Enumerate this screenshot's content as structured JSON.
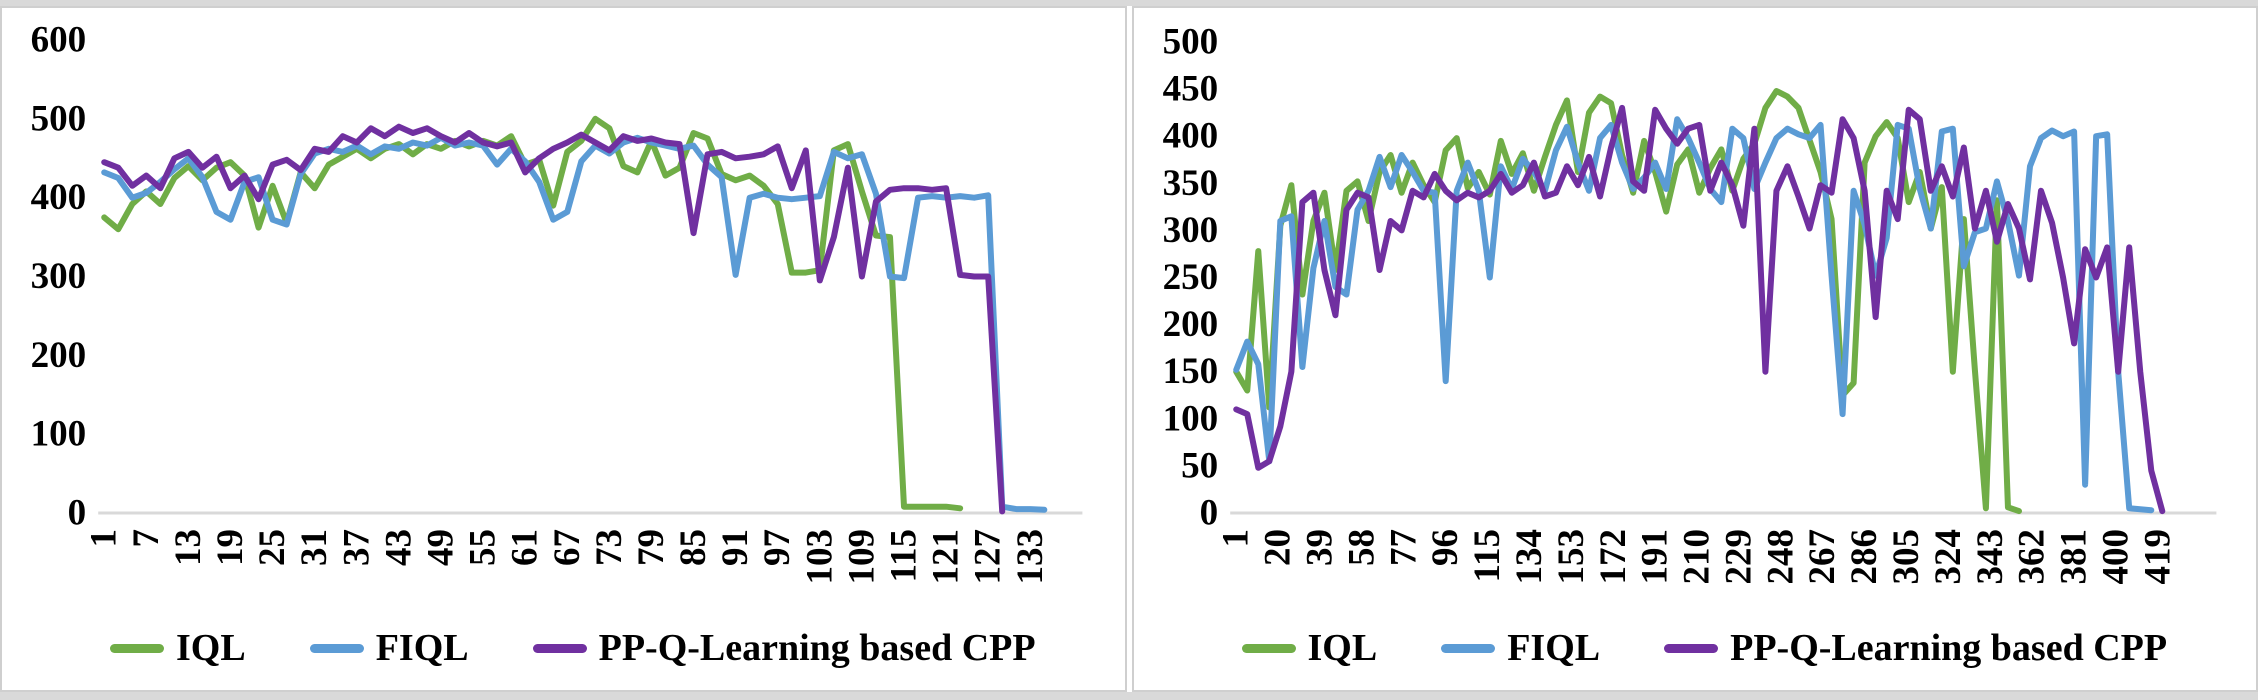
{
  "figure": {
    "background": "#ffffff",
    "frame_color": "#d9d9d9",
    "panel_border_color": "#cfcfcf",
    "axis_line_color": "#d9d9d9",
    "tick_color": "#000000"
  },
  "legend": {
    "items": [
      {
        "label": "IQL",
        "color": "#70AD47"
      },
      {
        "label": "FIQL",
        "color": "#5B9BD5"
      },
      {
        "label": "PP-Q-Learning based CPP",
        "color": "#7030A0"
      }
    ]
  },
  "chart_data": [
    {
      "type": "line",
      "title": "",
      "xlabel": "",
      "ylabel": "",
      "grid": false,
      "legend_position": "bottom",
      "x_start": 1,
      "x_step": 2,
      "xlim": [
        1,
        135
      ],
      "ylim": [
        0,
        600
      ],
      "yticks": [
        0,
        100,
        200,
        300,
        400,
        500,
        600
      ],
      "xticks": [
        1,
        7,
        13,
        19,
        25,
        31,
        37,
        43,
        49,
        55,
        61,
        67,
        73,
        79,
        85,
        91,
        97,
        103,
        109,
        115,
        121,
        127,
        133
      ],
      "series": [
        {
          "name": "IQL",
          "color": "#70AD47",
          "values": [
            375,
            360,
            392,
            408,
            392,
            425,
            440,
            422,
            438,
            445,
            428,
            362,
            415,
            368,
            432,
            412,
            442,
            452,
            462,
            450,
            462,
            468,
            455,
            468,
            462,
            472,
            465,
            472,
            466,
            478,
            442,
            448,
            390,
            458,
            472,
            500,
            488,
            440,
            432,
            472,
            428,
            438,
            482,
            475,
            430,
            422,
            428,
            415,
            392,
            305,
            305,
            308,
            460,
            468,
            408,
            352,
            350,
            8,
            8,
            8,
            8,
            6,
            null,
            null,
            null,
            null,
            null,
            null
          ]
        },
        {
          "name": "FIQL",
          "color": "#5B9BD5",
          "values": [
            432,
            425,
            400,
            406,
            420,
            436,
            450,
            426,
            382,
            372,
            420,
            426,
            372,
            366,
            430,
            456,
            462,
            458,
            466,
            455,
            465,
            462,
            470,
            466,
            476,
            466,
            470,
            466,
            442,
            462,
            446,
            420,
            372,
            382,
            446,
            466,
            456,
            470,
            476,
            470,
            466,
            462,
            466,
            442,
            426,
            302,
            400,
            405,
            400,
            398,
            400,
            402,
            458,
            450,
            455,
            405,
            300,
            298,
            400,
            402,
            400,
            402,
            400,
            403,
            8,
            5,
            5,
            4
          ]
        },
        {
          "name": "PP-Q-Learning based CPP",
          "color": "#7030A0",
          "values": [
            445,
            438,
            415,
            428,
            412,
            450,
            458,
            438,
            452,
            412,
            428,
            398,
            442,
            448,
            435,
            462,
            458,
            478,
            470,
            488,
            478,
            490,
            482,
            488,
            478,
            470,
            482,
            470,
            465,
            470,
            432,
            450,
            462,
            470,
            480,
            470,
            460,
            478,
            472,
            475,
            470,
            468,
            355,
            455,
            458,
            450,
            452,
            455,
            465,
            412,
            460,
            295,
            350,
            438,
            300,
            395,
            410,
            412,
            412,
            410,
            412,
            302,
            300,
            300,
            2,
            null,
            null,
            null
          ]
        }
      ]
    },
    {
      "type": "line",
      "title": "",
      "xlabel": "",
      "ylabel": "",
      "grid": false,
      "legend_position": "bottom",
      "x_start": 1,
      "x_step": 5,
      "xlim": [
        1,
        421
      ],
      "ylim": [
        0,
        500
      ],
      "yticks": [
        0,
        50,
        100,
        150,
        200,
        250,
        300,
        350,
        400,
        450,
        500
      ],
      "xticks": [
        1,
        20,
        39,
        58,
        77,
        96,
        115,
        134,
        153,
        172,
        191,
        210,
        229,
        248,
        267,
        286,
        305,
        324,
        343,
        362,
        381,
        400,
        419
      ],
      "series": [
        {
          "name": "IQL",
          "color": "#70AD47",
          "values": [
            150,
            130,
            278,
            112,
            305,
            348,
            232,
            310,
            340,
            258,
            342,
            352,
            310,
            362,
            380,
            340,
            372,
            348,
            330,
            385,
            398,
            345,
            362,
            338,
            395,
            360,
            382,
            342,
            378,
            412,
            438,
            362,
            425,
            442,
            435,
            380,
            340,
            395,
            362,
            320,
            370,
            386,
            340,
            366,
            386,
            342,
            376,
            392,
            430,
            448,
            442,
            430,
            396,
            362,
            312,
            125,
            138,
            372,
            400,
            415,
            398,
            330,
            362,
            302,
            346,
            150,
            312,
            152,
            5,
            332,
            6,
            2,
            null,
            null,
            null,
            null,
            null,
            null,
            null,
            null,
            null,
            null,
            null,
            null,
            null
          ]
        },
        {
          "name": "FIQL",
          "color": "#5B9BD5",
          "values": [
            152,
            182,
            158,
            55,
            310,
            315,
            155,
            260,
            310,
            240,
            232,
            322,
            342,
            378,
            346,
            380,
            362,
            342,
            340,
            140,
            342,
            372,
            342,
            250,
            368,
            344,
            376,
            362,
            342,
            385,
            410,
            372,
            342,
            398,
            412,
            372,
            344,
            356,
            372,
            344,
            418,
            398,
            372,
            344,
            330,
            408,
            398,
            344,
            372,
            398,
            408,
            402,
            398,
            412,
            252,
            105,
            342,
            306,
            252,
            292,
            412,
            408,
            344,
            302,
            405,
            408,
            262,
            298,
            302,
            352,
            310,
            252,
            368,
            398,
            406,
            400,
            405,
            30,
            400,
            402,
            150,
            5,
            4,
            3,
            null
          ]
        },
        {
          "name": "PP-Q-Learning based CPP",
          "color": "#7030A0",
          "values": [
            110,
            105,
            48,
            55,
            92,
            150,
            330,
            340,
            258,
            210,
            322,
            340,
            335,
            258,
            310,
            300,
            342,
            335,
            360,
            342,
            332,
            340,
            335,
            342,
            360,
            340,
            348,
            372,
            336,
            340,
            368,
            348,
            378,
            336,
            388,
            430,
            352,
            342,
            428,
            408,
            392,
            408,
            412,
            342,
            372,
            348,
            305,
            408,
            150,
            342,
            368,
            336,
            302,
            348,
            340,
            418,
            398,
            342,
            208,
            342,
            312,
            428,
            418,
            342,
            368,
            336,
            388,
            302,
            342,
            288,
            328,
            302,
            248,
            342,
            308,
            250,
            180,
            280,
            250,
            282,
            150,
            282,
            150,
            45,
            2
          ]
        }
      ]
    }
  ]
}
